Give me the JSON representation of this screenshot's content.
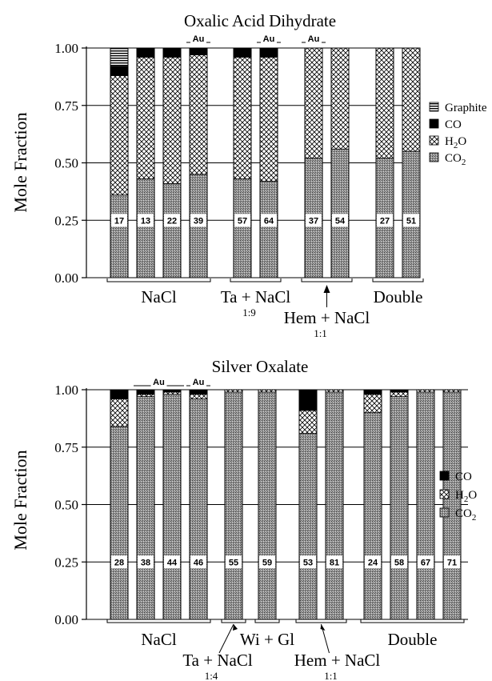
{
  "chart_data": [
    {
      "type": "bar",
      "stacked": true,
      "title": "Oxalic Acid Dihydrate",
      "ylabel": "Mole Fraction",
      "ylim": [
        0,
        1
      ],
      "yticks": [
        "0.00",
        "0.25",
        "0.50",
        "0.75",
        "1.00"
      ],
      "grid": "horizontal",
      "legend_position": "right",
      "legend": [
        {
          "name": "Graphite",
          "fill": "graphite"
        },
        {
          "name": "CO",
          "fill": "co"
        },
        {
          "name": "H2O",
          "fill": "h2o"
        },
        {
          "name": "CO2",
          "fill": "co2"
        }
      ],
      "bars": [
        {
          "label": "17",
          "CO2": 0.36,
          "H2O": 0.52,
          "CO": 0.04,
          "Graphite": 0.08
        },
        {
          "label": "13",
          "CO2": 0.43,
          "H2O": 0.53,
          "CO": 0.04,
          "Graphite": 0
        },
        {
          "label": "22",
          "CO2": 0.41,
          "H2O": 0.55,
          "CO": 0.04,
          "Graphite": 0
        },
        {
          "label": "39",
          "CO2": 0.45,
          "H2O": 0.52,
          "CO": 0.03,
          "Graphite": 0
        },
        {
          "label": "57",
          "CO2": 0.43,
          "H2O": 0.53,
          "CO": 0.04,
          "Graphite": 0
        },
        {
          "label": "64",
          "CO2": 0.42,
          "H2O": 0.54,
          "CO": 0.04,
          "Graphite": 0
        },
        {
          "label": "37",
          "CO2": 0.52,
          "H2O": 0.48,
          "CO": 0,
          "Graphite": 0
        },
        {
          "label": "54",
          "CO2": 0.56,
          "H2O": 0.44,
          "CO": 0,
          "Graphite": 0
        },
        {
          "label": "27",
          "CO2": 0.52,
          "H2O": 0.48,
          "CO": 0,
          "Graphite": 0
        },
        {
          "label": "51",
          "CO2": 0.55,
          "H2O": 0.45,
          "CO": 0,
          "Graphite": 0
        }
      ],
      "au_markers": [
        {
          "text": "Au",
          "bars": [
            3
          ]
        },
        {
          "text": "Au",
          "bars": [
            5
          ]
        },
        {
          "text": "Au",
          "bars": [
            6
          ]
        }
      ],
      "groups": [
        {
          "label": "NaCl",
          "bars": [
            0,
            3
          ]
        },
        {
          "label": "Ta + NaCl",
          "ratio": "1:9",
          "bars": [
            4,
            5
          ]
        },
        {
          "label": "Hem + NaCl",
          "ratio": "1:1",
          "bars": [
            6,
            7
          ]
        },
        {
          "label": "Double",
          "bars": [
            8,
            9
          ]
        }
      ]
    },
    {
      "type": "bar",
      "stacked": true,
      "title": "Silver Oxalate",
      "ylabel": "Mole Fraction",
      "ylim": [
        0,
        1
      ],
      "yticks": [
        "0.00",
        "0.25",
        "0.50",
        "0.75",
        "1.00"
      ],
      "grid": "horizontal",
      "legend_position": "right",
      "legend": [
        {
          "name": "CO",
          "fill": "co"
        },
        {
          "name": "H2O",
          "fill": "h2o"
        },
        {
          "name": "CO2",
          "fill": "co2"
        }
      ],
      "bars": [
        {
          "label": "28",
          "CO2": 0.84,
          "H2O": 0.12,
          "CO": 0.04
        },
        {
          "label": "38",
          "CO2": 0.97,
          "H2O": 0.01,
          "CO": 0.02
        },
        {
          "label": "44",
          "CO2": 0.98,
          "H2O": 0.01,
          "CO": 0.01
        },
        {
          "label": "46",
          "CO2": 0.96,
          "H2O": 0.02,
          "CO": 0.02
        },
        {
          "label": "55",
          "CO2": 0.99,
          "H2O": 0.01,
          "CO": 0
        },
        {
          "label": "59",
          "CO2": 0.99,
          "H2O": 0.01,
          "CO": 0
        },
        {
          "label": "53",
          "CO2": 0.81,
          "H2O": 0.1,
          "CO": 0.09
        },
        {
          "label": "81",
          "CO2": 0.99,
          "H2O": 0.01,
          "CO": 0
        },
        {
          "label": "24",
          "CO2": 0.9,
          "H2O": 0.08,
          "CO": 0.02
        },
        {
          "label": "58",
          "CO2": 0.97,
          "H2O": 0.02,
          "CO": 0.01
        },
        {
          "label": "67",
          "CO2": 0.99,
          "H2O": 0.01,
          "CO": 0
        },
        {
          "label": "71",
          "CO2": 0.99,
          "H2O": 0.01,
          "CO": 0
        }
      ],
      "au_markers": [
        {
          "text": "Au",
          "bars": [
            1,
            2
          ]
        },
        {
          "text": "Au",
          "bars": [
            3
          ]
        }
      ],
      "groups": [
        {
          "label": "NaCl",
          "bars": [
            0,
            3
          ]
        },
        {
          "label": "Ta + NaCl",
          "ratio": "1:4",
          "bars": [
            4,
            4
          ]
        },
        {
          "label": "Wi + Gl",
          "bars": [
            5,
            5
          ]
        },
        {
          "label": "Hem + NaCl",
          "ratio": "1:1",
          "bars": [
            6,
            7
          ]
        },
        {
          "label": "Double",
          "bars": [
            8,
            11
          ]
        }
      ]
    }
  ]
}
